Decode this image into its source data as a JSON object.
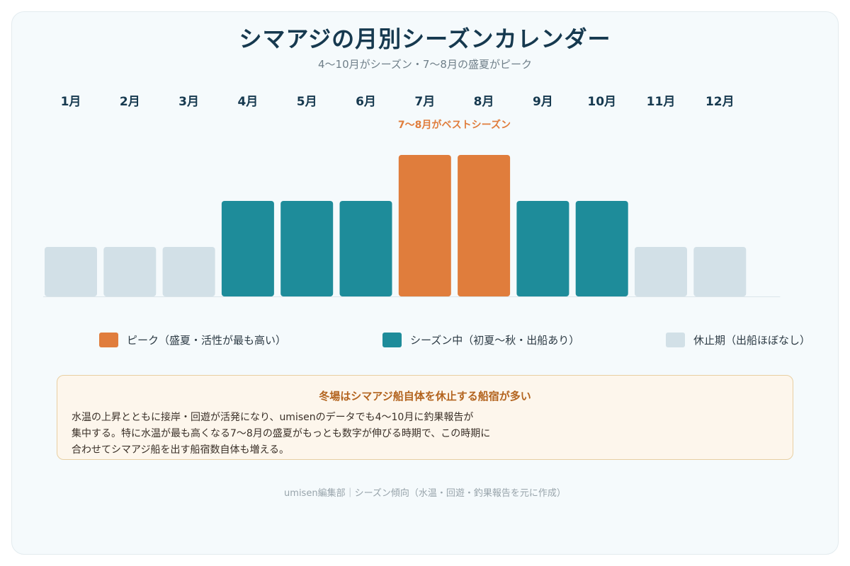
{
  "title": "シマアジの月別シーズンカレンダー",
  "subtitle": "4〜10月がシーズン・7〜8月の盛夏がピーク",
  "colors": {
    "peak": "#e07d3c",
    "season": "#1e8c9a",
    "off": "#d2e0e7",
    "title": "#16394f",
    "annotation": "#e07d3c",
    "note_title": "#b3641f"
  },
  "chart_data": {
    "type": "bar",
    "categories": [
      "1月",
      "2月",
      "3月",
      "4月",
      "5月",
      "6月",
      "7月",
      "8月",
      "9月",
      "10月",
      "11月",
      "12月"
    ],
    "values": [
      1,
      1,
      1,
      2,
      2,
      2,
      3,
      3,
      2,
      2,
      1,
      1
    ],
    "status": [
      "off",
      "off",
      "off",
      "season",
      "season",
      "season",
      "peak",
      "peak",
      "season",
      "season",
      "off",
      "off"
    ],
    "ylim": [
      0,
      3
    ],
    "annotation": {
      "text": "7〜8月がベストシーズン",
      "months": [
        "7月",
        "8月"
      ]
    },
    "legend": [
      {
        "key": "peak",
        "label": "ピーク（盛夏・活性が最も高い）"
      },
      {
        "key": "season",
        "label": "シーズン中（初夏〜秋・出船あり）"
      },
      {
        "key": "off",
        "label": "休止期（出船ほぼなし）"
      }
    ],
    "legend_position": "bottom",
    "grid": false
  },
  "note": {
    "title": "冬場はシマアジ船自体を休止する船宿が多い",
    "lines": [
      "水温の上昇とともに接岸・回遊が活発になり、umisenのデータでも4〜10月に釣果報告が",
      "集中する。特に水温が最も高くなる7〜8月の盛夏がもっとも数字が伸びる時期で、この時期に",
      "合わせてシマアジ船を出す船宿数自体も増える。"
    ]
  },
  "footer": "umisen編集部｜シーズン傾向（水温・回遊・釣果報告を元に作成）"
}
